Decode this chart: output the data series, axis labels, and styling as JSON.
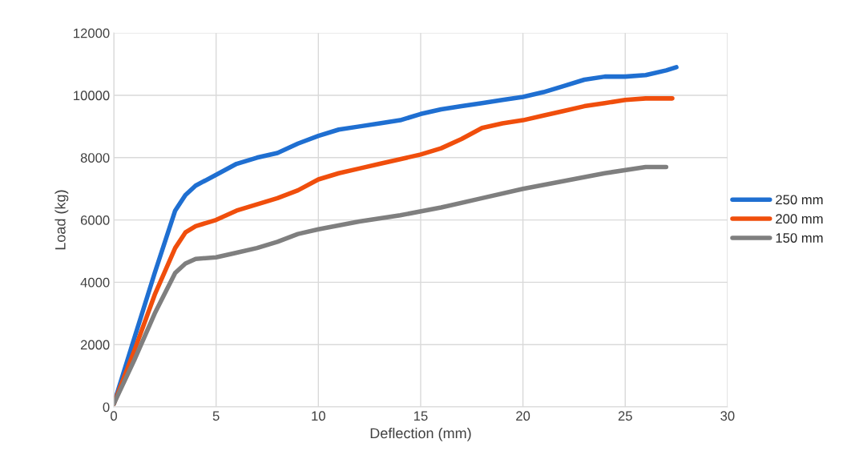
{
  "chart_data": {
    "type": "line",
    "xlabel": "Deflection (mm)",
    "ylabel": "Load (kg)",
    "xlim": [
      0,
      30
    ],
    "xticks": [
      0,
      5,
      10,
      15,
      20,
      25,
      30
    ],
    "ylim": [
      0,
      12000
    ],
    "yticks": [
      0,
      2000,
      4000,
      6000,
      8000,
      10000,
      12000
    ],
    "grid": true,
    "legend": "right",
    "marker": "none",
    "line_style": "solid",
    "series": [
      {
        "name": "250 mm",
        "color": "#1f6fd1",
        "x": [
          0,
          1,
          2,
          3,
          3.5,
          4,
          5,
          6,
          7,
          8,
          9,
          10,
          11,
          12,
          13,
          14,
          15,
          16,
          17,
          18,
          19,
          20,
          21,
          22,
          23,
          24,
          25,
          26,
          27,
          27.5
        ],
        "values": [
          100,
          2200,
          4300,
          6300,
          6800,
          7100,
          7450,
          7800,
          8000,
          8150,
          8450,
          8700,
          8900,
          9000,
          9100,
          9200,
          9400,
          9550,
          9650,
          9750,
          9850,
          9950,
          10100,
          10300,
          10500,
          10600,
          10600,
          10650,
          10800,
          10900
        ]
      },
      {
        "name": "200 mm",
        "color": "#f04e0c",
        "x": [
          0,
          1,
          2,
          3,
          3.5,
          4,
          5,
          6,
          7,
          8,
          9,
          10,
          11,
          12,
          13,
          14,
          15,
          16,
          17,
          18,
          19,
          20,
          21,
          22,
          23,
          24,
          25,
          26,
          27.3
        ],
        "values": [
          100,
          1800,
          3600,
          5100,
          5600,
          5800,
          6000,
          6300,
          6500,
          6700,
          6950,
          7300,
          7500,
          7650,
          7800,
          7950,
          8100,
          8300,
          8600,
          8950,
          9100,
          9200,
          9350,
          9500,
          9650,
          9750,
          9850,
          9900,
          9900
        ]
      },
      {
        "name": "150 mm",
        "color": "#7f7f7f",
        "x": [
          0,
          1,
          2,
          3,
          3.5,
          4,
          5,
          6,
          7,
          8,
          9,
          10,
          12,
          14,
          16,
          18,
          20,
          22,
          24,
          26,
          27
        ],
        "values": [
          100,
          1500,
          3000,
          4300,
          4600,
          4750,
          4800,
          4950,
          5100,
          5300,
          5550,
          5700,
          5950,
          6150,
          6400,
          6700,
          7000,
          7250,
          7500,
          7700,
          7700
        ]
      }
    ]
  }
}
